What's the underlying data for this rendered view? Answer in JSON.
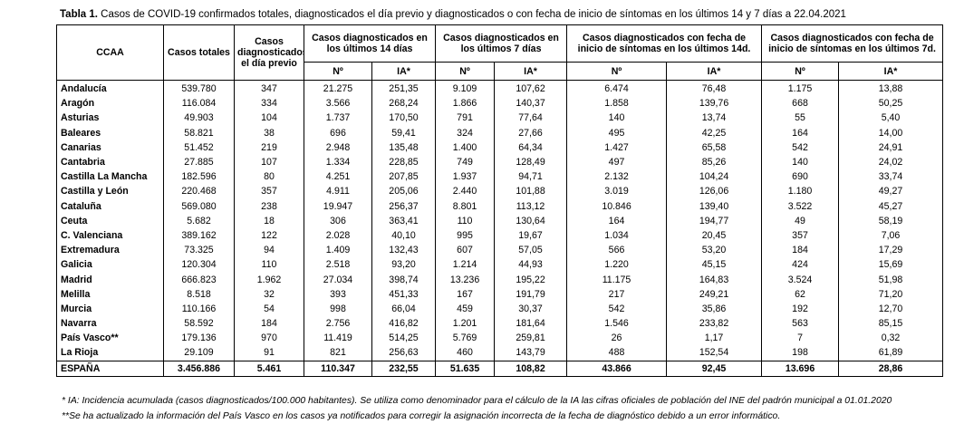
{
  "title": {
    "label": "Tabla 1.",
    "text": "Casos de COVID-19 confirmados totales, diagnosticados el día previo y diagnosticados o con fecha de inicio de síntomas en los últimos 14 y 7 días a 22.04.2021"
  },
  "table": {
    "header": {
      "top": [
        "CCAA",
        "Casos totales",
        "Casos diagnosticados el día previo",
        "Casos diagnosticados en los últimos 14 días",
        "Casos diagnosticados en los últimos 7 días",
        "Casos diagnosticados con fecha de inicio de síntomas en los últimos 14d.",
        "Casos diagnosticados con fecha de inicio de síntomas en los últimos 7d."
      ],
      "sub": [
        "Nº",
        "IA*",
        "Nº",
        "IA*",
        "Nº",
        "IA*",
        "Nº",
        "IA*"
      ]
    },
    "rows": [
      [
        "Andalucía",
        "539.780",
        "347",
        "21.275",
        "251,35",
        "9.109",
        "107,62",
        "6.474",
        "76,48",
        "1.175",
        "13,88"
      ],
      [
        "Aragón",
        "116.084",
        "334",
        "3.566",
        "268,24",
        "1.866",
        "140,37",
        "1.858",
        "139,76",
        "668",
        "50,25"
      ],
      [
        "Asturias",
        "49.903",
        "104",
        "1.737",
        "170,50",
        "791",
        "77,64",
        "140",
        "13,74",
        "55",
        "5,40"
      ],
      [
        "Baleares",
        "58.821",
        "38",
        "696",
        "59,41",
        "324",
        "27,66",
        "495",
        "42,25",
        "164",
        "14,00"
      ],
      [
        "Canarias",
        "51.452",
        "219",
        "2.948",
        "135,48",
        "1.400",
        "64,34",
        "1.427",
        "65,58",
        "542",
        "24,91"
      ],
      [
        "Cantabria",
        "27.885",
        "107",
        "1.334",
        "228,85",
        "749",
        "128,49",
        "497",
        "85,26",
        "140",
        "24,02"
      ],
      [
        "Castilla La Mancha",
        "182.596",
        "80",
        "4.251",
        "207,85",
        "1.937",
        "94,71",
        "2.132",
        "104,24",
        "690",
        "33,74"
      ],
      [
        "Castilla y León",
        "220.468",
        "357",
        "4.911",
        "205,06",
        "2.440",
        "101,88",
        "3.019",
        "126,06",
        "1.180",
        "49,27"
      ],
      [
        "Cataluña",
        "569.080",
        "238",
        "19.947",
        "256,37",
        "8.801",
        "113,12",
        "10.846",
        "139,40",
        "3.522",
        "45,27"
      ],
      [
        "Ceuta",
        "5.682",
        "18",
        "306",
        "363,41",
        "110",
        "130,64",
        "164",
        "194,77",
        "49",
        "58,19"
      ],
      [
        "C. Valenciana",
        "389.162",
        "122",
        "2.028",
        "40,10",
        "995",
        "19,67",
        "1.034",
        "20,45",
        "357",
        "7,06"
      ],
      [
        "Extremadura",
        "73.325",
        "94",
        "1.409",
        "132,43",
        "607",
        "57,05",
        "566",
        "53,20",
        "184",
        "17,29"
      ],
      [
        "Galicia",
        "120.304",
        "110",
        "2.518",
        "93,20",
        "1.214",
        "44,93",
        "1.220",
        "45,15",
        "424",
        "15,69"
      ],
      [
        "Madrid",
        "666.823",
        "1.962",
        "27.034",
        "398,74",
        "13.236",
        "195,22",
        "11.175",
        "164,83",
        "3.524",
        "51,98"
      ],
      [
        "Melilla",
        "8.518",
        "32",
        "393",
        "451,33",
        "167",
        "191,79",
        "217",
        "249,21",
        "62",
        "71,20"
      ],
      [
        "Murcia",
        "110.166",
        "54",
        "998",
        "66,04",
        "459",
        "30,37",
        "542",
        "35,86",
        "192",
        "12,70"
      ],
      [
        "Navarra",
        "58.592",
        "184",
        "2.756",
        "416,82",
        "1.201",
        "181,64",
        "1.546",
        "233,82",
        "563",
        "85,15"
      ],
      [
        "País Vasco**",
        "179.136",
        "970",
        "11.419",
        "514,25",
        "5.769",
        "259,81",
        "26",
        "1,17",
        "7",
        "0,32"
      ],
      [
        "La Rioja",
        "29.109",
        "91",
        "821",
        "256,63",
        "460",
        "143,79",
        "488",
        "152,54",
        "198",
        "61,89"
      ]
    ],
    "total": [
      "ESPAÑA",
      "3.456.886",
      "5.461",
      "110.347",
      "232,55",
      "51.635",
      "108,82",
      "43.866",
      "92,45",
      "13.696",
      "28,86"
    ]
  },
  "notes": [
    "* IA: Incidencia acumulada (casos diagnosticados/100.000 habitantes). Se utiliza como denominador para el cálculo de la IA las cifras oficiales de población del INE del padrón municipal a 01.01.2020",
    "**Se ha actualizado la información del País Vasco en los casos ya notificados para corregir la asignación incorrecta de la fecha de diagnóstico debido a un error informático."
  ]
}
